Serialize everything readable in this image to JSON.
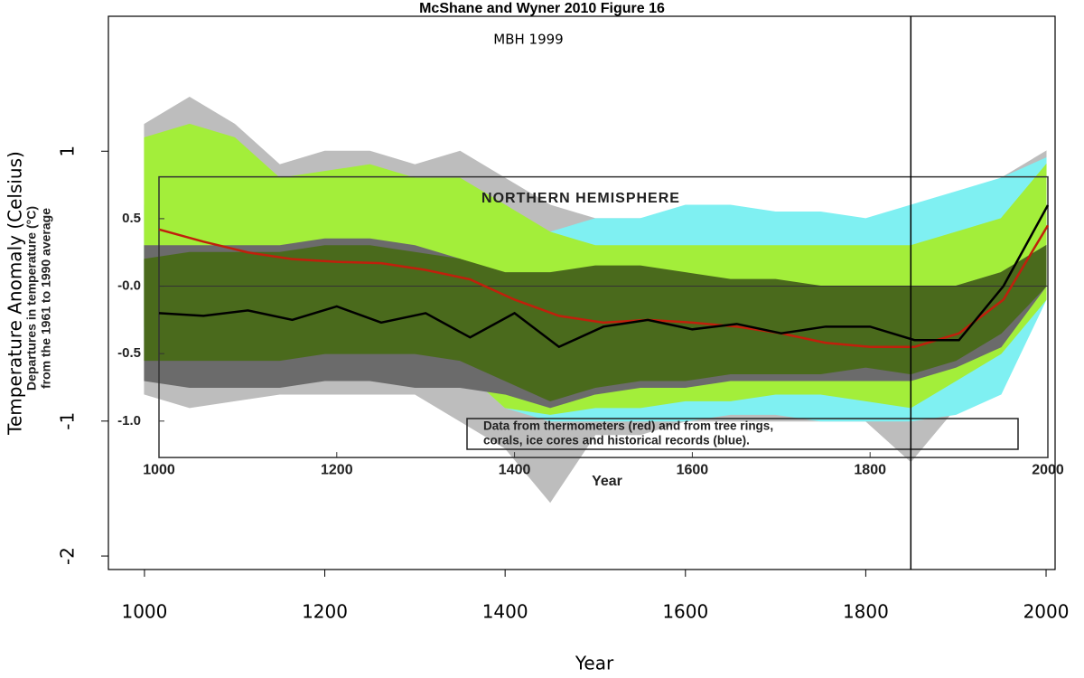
{
  "chart_data": {
    "type": "line",
    "title": "McShane and Wyner 2010 Figure 16",
    "annotation": "MBH 1999",
    "x_label": "Year",
    "y_label": "Temperature Anomaly (Celsius)",
    "xlim": [
      960,
      2010
    ],
    "ylim": [
      -2.1,
      2.0
    ],
    "xticks": [
      1000,
      1200,
      1400,
      1600,
      1800,
      2000
    ],
    "yticks": [
      -2,
      -1,
      1
    ],
    "vline": 1850,
    "x": [
      1000,
      1050,
      1100,
      1150,
      1200,
      1250,
      1300,
      1350,
      1400,
      1450,
      1500,
      1550,
      1600,
      1650,
      1700,
      1750,
      1800,
      1850,
      1900,
      1950,
      2000
    ],
    "bands": [
      {
        "color": "#bdbdbd",
        "upper": [
          1.2,
          1.4,
          1.2,
          0.9,
          1.0,
          1.0,
          0.9,
          1.0,
          0.8,
          0.6,
          0.5,
          0.5,
          0.55,
          0.55,
          0.5,
          0.5,
          0.45,
          0.5,
          0.6,
          0.8,
          1.0
        ],
        "lower": [
          -0.8,
          -0.9,
          -0.85,
          -0.8,
          -0.8,
          -0.8,
          -0.8,
          -1.0,
          -1.2,
          -1.6,
          -1.1,
          -1.1,
          -1.0,
          -1.0,
          -1.0,
          -1.0,
          -1.0,
          -1.3,
          -0.9,
          -0.7,
          -0.1
        ]
      },
      {
        "color": "#7ff0f2",
        "upper": [
          0.6,
          0.7,
          0.6,
          0.5,
          0.6,
          0.6,
          0.6,
          0.7,
          0.5,
          0.4,
          0.5,
          0.5,
          0.6,
          0.6,
          0.55,
          0.55,
          0.5,
          0.6,
          0.7,
          0.8,
          0.95
        ],
        "lower": [
          -0.4,
          -0.4,
          -0.4,
          -0.4,
          -0.4,
          -0.4,
          -0.45,
          -0.6,
          -0.9,
          -1.0,
          -1.0,
          -1.0,
          -1.0,
          -0.95,
          -0.95,
          -1.0,
          -1.0,
          -1.0,
          -0.95,
          -0.8,
          -0.1
        ]
      },
      {
        "color": "#a3ee3a",
        "upper": [
          1.1,
          1.2,
          1.1,
          0.8,
          0.85,
          0.9,
          0.8,
          0.8,
          0.6,
          0.4,
          0.3,
          0.3,
          0.3,
          0.3,
          0.3,
          0.3,
          0.3,
          0.3,
          0.4,
          0.5,
          0.9
        ],
        "lower": [
          -0.3,
          -0.3,
          -0.3,
          -0.35,
          -0.35,
          -0.35,
          -0.4,
          -0.6,
          -0.9,
          -0.95,
          -0.9,
          -0.9,
          -0.85,
          -0.85,
          -0.8,
          -0.8,
          -0.85,
          -0.9,
          -0.7,
          -0.5,
          -0.1
        ]
      },
      {
        "color": "#6b6b6b",
        "upper": [
          0.3,
          0.3,
          0.3,
          0.3,
          0.35,
          0.35,
          0.3,
          0.2,
          0.0,
          -0.1,
          -0.1,
          -0.1,
          -0.05,
          -0.05,
          -0.1,
          -0.1,
          -0.1,
          -0.15,
          0.0,
          0.1,
          0.3
        ],
        "lower": [
          -0.7,
          -0.75,
          -0.75,
          -0.75,
          -0.7,
          -0.7,
          -0.75,
          -0.75,
          -0.8,
          -0.9,
          -0.8,
          -0.75,
          -0.75,
          -0.7,
          -0.7,
          -0.7,
          -0.7,
          -0.7,
          -0.6,
          -0.45,
          0.0
        ]
      },
      {
        "color": "#4a6a1c",
        "upper": [
          0.2,
          0.25,
          0.25,
          0.25,
          0.3,
          0.3,
          0.25,
          0.2,
          0.1,
          0.1,
          0.15,
          0.15,
          0.1,
          0.05,
          0.05,
          0.0,
          0.0,
          0.0,
          0.0,
          0.1,
          0.3
        ],
        "lower": [
          -0.55,
          -0.55,
          -0.55,
          -0.55,
          -0.5,
          -0.5,
          -0.5,
          -0.55,
          -0.7,
          -0.85,
          -0.75,
          -0.7,
          -0.7,
          -0.65,
          -0.65,
          -0.65,
          -0.6,
          -0.65,
          -0.55,
          -0.35,
          0.0
        ]
      }
    ],
    "inset": {
      "type": "line",
      "title": "NORTHERN HEMISPHERE",
      "x_label": "Year",
      "y_label": [
        "Departures in temperature (°C)",
        "from the 1961 to 1990 average"
      ],
      "note": [
        "Data from thermometers (red) and from tree rings,",
        "corals, ice cores and historical records (blue)."
      ],
      "xlim": [
        1000,
        2000
      ],
      "ylim": [
        -1.27,
        0.81
      ],
      "xticks": [
        1000,
        1200,
        1400,
        1600,
        1800,
        2000
      ],
      "yticks": [
        0.5,
        {
          "value": 0,
          "label": "-0.0"
        },
        -0.5,
        {
          "value": -1,
          "label": "-1.0"
        }
      ],
      "hline": 0,
      "x": [
        1000,
        1050,
        1100,
        1150,
        1200,
        1250,
        1300,
        1350,
        1400,
        1450,
        1500,
        1550,
        1600,
        1650,
        1700,
        1750,
        1800,
        1850,
        1900,
        1950,
        2000
      ],
      "series": [
        {
          "color": "#c0200c",
          "values": [
            0.42,
            0.33,
            0.25,
            0.2,
            0.18,
            0.17,
            0.12,
            0.05,
            -0.1,
            -0.22,
            -0.27,
            -0.25,
            -0.27,
            -0.3,
            -0.35,
            -0.42,
            -0.45,
            -0.45,
            -0.35,
            -0.1,
            0.45
          ]
        },
        {
          "color": "#000000",
          "values": [
            -0.2,
            -0.22,
            -0.18,
            -0.25,
            -0.15,
            -0.27,
            -0.2,
            -0.38,
            -0.2,
            -0.45,
            -0.3,
            -0.25,
            -0.32,
            -0.28,
            -0.35,
            -0.3,
            -0.3,
            -0.4,
            -0.4,
            0.0,
            0.6
          ]
        }
      ]
    }
  }
}
